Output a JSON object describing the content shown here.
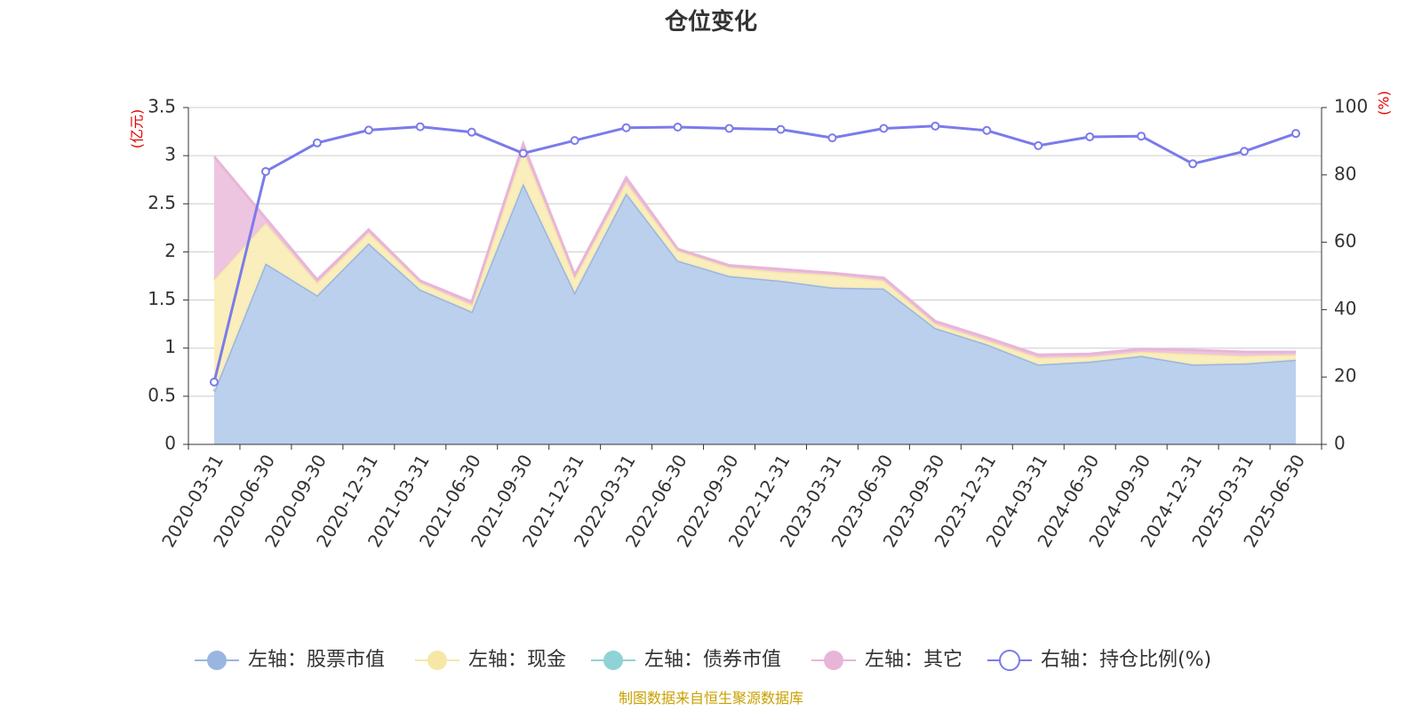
{
  "chart_data": {
    "type": "area",
    "title": "仓位变化",
    "left_axis": {
      "unit": "(亿元)",
      "ylim": [
        0,
        3.5
      ],
      "ticks": [
        "0",
        "0.5",
        "1",
        "1.5",
        "2",
        "2.5",
        "3",
        "3.5"
      ]
    },
    "right_axis": {
      "unit": "(%)",
      "ylim": [
        0,
        100
      ],
      "ticks": [
        "0",
        "20",
        "40",
        "60",
        "80",
        "100"
      ]
    },
    "grid": true,
    "legend_position": "bottom",
    "categories": [
      "2020-03-31",
      "2020-06-30",
      "2020-09-30",
      "2020-12-31",
      "2021-03-31",
      "2021-06-30",
      "2021-09-30",
      "2021-12-31",
      "2022-03-31",
      "2022-06-30",
      "2022-09-30",
      "2022-12-31",
      "2023-03-31",
      "2023-06-30",
      "2023-09-30",
      "2023-12-31",
      "2024-03-31",
      "2024-06-30",
      "2024-09-30",
      "2024-12-31",
      "2025-03-31",
      "2025-06-30"
    ],
    "series": [
      {
        "name": "左轴：股票市值",
        "axis": "left",
        "kind": "area",
        "color": "#9ab5e0",
        "fill": "#b7cdeb",
        "values": [
          0.55,
          1.88,
          1.55,
          2.09,
          1.61,
          1.38,
          2.71,
          1.58,
          2.61,
          1.91,
          1.75,
          1.7,
          1.63,
          1.62,
          1.21,
          1.04,
          0.83,
          0.86,
          0.92,
          0.83,
          0.84,
          0.88
        ]
      },
      {
        "name": "左轴：现金",
        "axis": "left",
        "kind": "area",
        "color": "#f7e7a6",
        "fill": "#f9edb8",
        "values": [
          1.16,
          0.42,
          0.13,
          0.11,
          0.07,
          0.07,
          0.35,
          0.15,
          0.11,
          0.1,
          0.09,
          0.09,
          0.13,
          0.08,
          0.04,
          0.04,
          0.07,
          0.05,
          0.04,
          0.11,
          0.08,
          0.05
        ]
      },
      {
        "name": "左轴：债券市值",
        "axis": "left",
        "kind": "area",
        "color": "#8fd3d6",
        "fill": "#a8dcde",
        "values": [
          0,
          0,
          0,
          0,
          0,
          0,
          0,
          0,
          0,
          0,
          0,
          0,
          0,
          0,
          0,
          0,
          0,
          0,
          0,
          0,
          0,
          0
        ]
      },
      {
        "name": "左轴：其它",
        "axis": "left",
        "kind": "area",
        "color": "#e8b5d8",
        "fill": "#ecc2df",
        "values": [
          1.28,
          0.05,
          0.03,
          0.03,
          0.02,
          0.03,
          0.06,
          0.03,
          0.05,
          0.02,
          0.02,
          0.03,
          0.02,
          0.03,
          0.03,
          0.03,
          0.03,
          0.03,
          0.03,
          0.04,
          0.04,
          0.03
        ]
      },
      {
        "name": "右轴：持仓比例(%)",
        "axis": "right",
        "kind": "line",
        "color": "#7b7bea",
        "values": [
          18.5,
          81.0,
          89.5,
          93.3,
          94.3,
          92.7,
          86.4,
          90.2,
          94.0,
          94.2,
          93.8,
          93.5,
          91.0,
          93.8,
          94.5,
          93.2,
          88.7,
          91.3,
          91.5,
          83.3,
          87.0,
          92.3
        ]
      }
    ],
    "source": "制图数据来自恒生聚源数据库"
  }
}
